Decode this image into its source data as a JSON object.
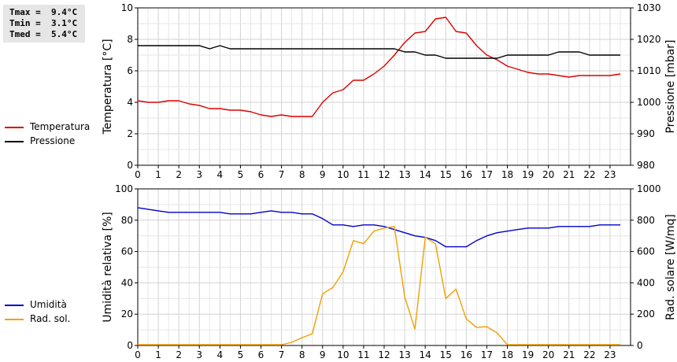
{
  "stats": {
    "lines": [
      "Tmax =  9.4°C",
      "Tmin =  3.1°C",
      "Tmed =  5.4°C"
    ]
  },
  "legend_top": [
    {
      "label": "Temperatura",
      "color": "#dd0000"
    },
    {
      "label": "Pressione",
      "color": "#000000"
    }
  ],
  "legend_bottom": [
    {
      "label": "Umidità",
      "color": "#0000cc"
    },
    {
      "label": "Rad. sol.",
      "color": "#f0a000"
    }
  ],
  "chart_data": [
    {
      "type": "line",
      "x_ticks": [
        "0",
        "1",
        "2",
        "3",
        "4",
        "5",
        "6",
        "7",
        "8",
        "9",
        "10",
        "11",
        "12",
        "13",
        "14",
        "15",
        "16",
        "17",
        "18",
        "19",
        "20",
        "21",
        "22",
        "23"
      ],
      "xlim": [
        0,
        24
      ],
      "ylabel": "Temperatura [°C]",
      "ylim": [
        0,
        10
      ],
      "y_ticks": [
        "0",
        "2",
        "4",
        "6",
        "8",
        "10"
      ],
      "y2label": "Pressione [mbar]",
      "y2lim": [
        980,
        1030
      ],
      "y2_ticks": [
        "980",
        "990",
        "1000",
        "1010",
        "1020",
        "1030"
      ],
      "grid": true,
      "series": [
        {
          "name": "Temperatura",
          "axis": "left",
          "color": "#dd0000",
          "x": [
            0,
            0.5,
            1,
            1.5,
            2,
            2.5,
            3,
            3.5,
            4,
            4.5,
            5,
            5.5,
            6,
            6.5,
            7,
            7.5,
            8,
            8.5,
            9,
            9.5,
            10,
            10.5,
            11,
            11.5,
            12,
            12.5,
            13,
            13.5,
            14,
            14.5,
            15,
            15.5,
            16,
            16.5,
            17,
            17.5,
            18,
            18.5,
            19,
            19.5,
            20,
            20.5,
            21,
            21.5,
            22,
            22.5,
            23,
            23.5
          ],
          "y": [
            4.1,
            4.0,
            4.0,
            4.1,
            4.1,
            3.9,
            3.8,
            3.6,
            3.6,
            3.5,
            3.5,
            3.4,
            3.2,
            3.1,
            3.2,
            3.1,
            3.1,
            3.1,
            4.0,
            4.6,
            4.8,
            5.4,
            5.4,
            5.8,
            6.3,
            7.0,
            7.8,
            8.4,
            8.5,
            9.3,
            9.4,
            8.5,
            8.4,
            7.6,
            7.0,
            6.7,
            6.3,
            6.1,
            5.9,
            5.8,
            5.8,
            5.7,
            5.6,
            5.7,
            5.7,
            5.7,
            5.7,
            5.8
          ]
        },
        {
          "name": "Pressione",
          "axis": "right",
          "color": "#000000",
          "x": [
            0,
            0.5,
            1,
            1.5,
            2,
            2.5,
            3,
            3.5,
            4,
            4.5,
            5,
            5.5,
            6,
            6.5,
            7,
            7.5,
            8,
            8.5,
            9,
            9.5,
            10,
            10.5,
            11,
            11.5,
            12,
            12.5,
            13,
            13.5,
            14,
            14.5,
            15,
            15.5,
            16,
            16.5,
            17,
            17.5,
            18,
            18.5,
            19,
            19.5,
            20,
            20.5,
            21,
            21.5,
            22,
            22.5,
            23,
            23.5
          ],
          "y": [
            1018,
            1018,
            1018,
            1018,
            1018,
            1018,
            1018,
            1017,
            1018,
            1017,
            1017,
            1017,
            1017,
            1017,
            1017,
            1017,
            1017,
            1017,
            1017,
            1017,
            1017,
            1017,
            1017,
            1017,
            1017,
            1017,
            1016,
            1016,
            1015,
            1015,
            1014,
            1014,
            1014,
            1014,
            1014,
            1014,
            1015,
            1015,
            1015,
            1015,
            1015,
            1016,
            1016,
            1016,
            1015,
            1015,
            1015,
            1015
          ]
        }
      ]
    },
    {
      "type": "line",
      "x_ticks": [
        "0",
        "1",
        "2",
        "3",
        "4",
        "5",
        "6",
        "7",
        "8",
        "9",
        "10",
        "11",
        "12",
        "13",
        "14",
        "15",
        "16",
        "17",
        "18",
        "19",
        "20",
        "21",
        "22",
        "23"
      ],
      "xlim": [
        0,
        24
      ],
      "ylabel": "Umidità relativa [%]",
      "ylim": [
        0,
        100
      ],
      "y_ticks": [
        "0",
        "20",
        "40",
        "60",
        "80",
        "100"
      ],
      "y2label": "Rad. solare [W/mq]",
      "y2lim": [
        0,
        1000
      ],
      "y2_ticks": [
        "0",
        "200",
        "400",
        "600",
        "800",
        "1000"
      ],
      "grid": true,
      "series": [
        {
          "name": "Umidità",
          "axis": "left",
          "color": "#0000cc",
          "x": [
            0,
            0.5,
            1,
            1.5,
            2,
            2.5,
            3,
            3.5,
            4,
            4.5,
            5,
            5.5,
            6,
            6.5,
            7,
            7.5,
            8,
            8.5,
            9,
            9.5,
            10,
            10.5,
            11,
            11.5,
            12,
            12.5,
            13,
            13.5,
            14,
            14.5,
            15,
            15.5,
            16,
            16.5,
            17,
            17.5,
            18,
            18.5,
            19,
            19.5,
            20,
            20.5,
            21,
            21.5,
            22,
            22.5,
            23,
            23.5
          ],
          "y": [
            88,
            87,
            86,
            85,
            85,
            85,
            85,
            85,
            85,
            84,
            84,
            84,
            85,
            86,
            85,
            85,
            84,
            84,
            81,
            77,
            77,
            76,
            77,
            77,
            76,
            74,
            72,
            70,
            69,
            67,
            63,
            63,
            63,
            67,
            70,
            72,
            73,
            74,
            75,
            75,
            75,
            76,
            76,
            76,
            76,
            77,
            77,
            77
          ]
        },
        {
          "name": "Rad. sol.",
          "axis": "right",
          "color": "#f0a000",
          "x": [
            0,
            0.5,
            1,
            1.5,
            2,
            2.5,
            3,
            3.5,
            4,
            4.5,
            5,
            5.5,
            6,
            6.5,
            7,
            7.5,
            8,
            8.5,
            9,
            9.5,
            10,
            10.5,
            11,
            11.5,
            12,
            12.5,
            13,
            13.5,
            14,
            14.5,
            15,
            15.5,
            16,
            16.5,
            17,
            17.5,
            18,
            18.5,
            19,
            19.5,
            20,
            20.5,
            21,
            21.5,
            22,
            22.5,
            23,
            23.5
          ],
          "y": [
            5,
            5,
            5,
            5,
            5,
            5,
            5,
            5,
            5,
            5,
            5,
            5,
            5,
            5,
            5,
            20,
            50,
            75,
            330,
            370,
            470,
            670,
            650,
            730,
            750,
            760,
            310,
            105,
            690,
            650,
            300,
            360,
            170,
            115,
            120,
            80,
            5,
            5,
            5,
            5,
            5,
            5,
            5,
            5,
            5,
            5,
            5,
            5
          ]
        }
      ]
    }
  ]
}
